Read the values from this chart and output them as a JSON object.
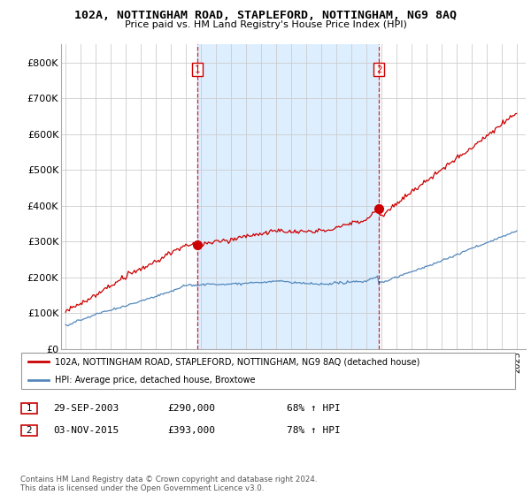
{
  "title": "102A, NOTTINGHAM ROAD, STAPLEFORD, NOTTINGHAM, NG9 8AQ",
  "subtitle": "Price paid vs. HM Land Registry's House Price Index (HPI)",
  "legend_line1": "102A, NOTTINGHAM ROAD, STAPLEFORD, NOTTINGHAM, NG9 8AQ (detached house)",
  "legend_line2": "HPI: Average price, detached house, Broxtowe",
  "annotation1": {
    "num": "1",
    "date": "29-SEP-2003",
    "price": "£290,000",
    "pct": "68% ↑ HPI"
  },
  "annotation2": {
    "num": "2",
    "date": "03-NOV-2015",
    "price": "£393,000",
    "pct": "78% ↑ HPI"
  },
  "copyright": "Contains HM Land Registry data © Crown copyright and database right 2024.\nThis data is licensed under the Open Government Licence v3.0.",
  "red_color": "#cc0000",
  "blue_color": "#5588bb",
  "fill_color": "#ddeeff",
  "vline_color": "#cc0000",
  "background_color": "#ffffff",
  "grid_color": "#cccccc",
  "ylim": [
    0,
    850000
  ],
  "yticks": [
    0,
    100000,
    200000,
    300000,
    400000,
    500000,
    600000,
    700000,
    800000
  ],
  "purchase1_year": 2003.75,
  "purchase2_year": 2015.84,
  "purchase1_price": 290000,
  "purchase2_price": 393000,
  "xstart": 1995,
  "xend": 2025
}
